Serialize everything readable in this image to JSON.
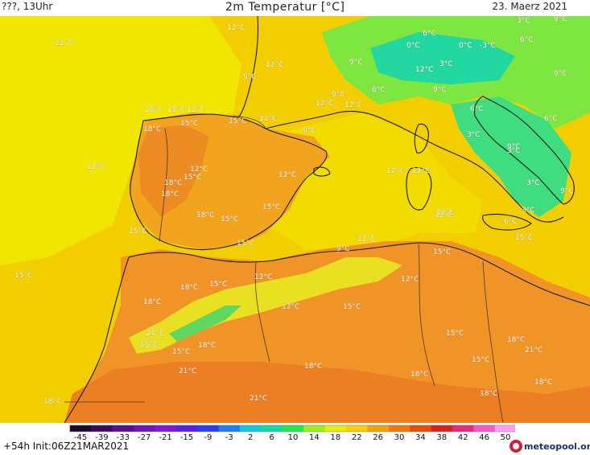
{
  "header": {
    "left": "???, 13Uhr",
    "title": "2m Temperatur [°C]",
    "date": "23. Maerz 2021"
  },
  "footer": {
    "run_info": "+54h  Init:06Z21MAR2021",
    "brand": "meteopool.org"
  },
  "legend": {
    "ticks": [
      "-45",
      "-39",
      "-33",
      "-27",
      "-21",
      "-15",
      "-9",
      "-3",
      "2",
      "6",
      "10",
      "14",
      "18",
      "22",
      "26",
      "30",
      "34",
      "38",
      "42",
      "46",
      "50"
    ],
    "colors": [
      "#1e0a2e",
      "#3a0a5e",
      "#55108a",
      "#6e14b4",
      "#8416d6",
      "#5a1ee6",
      "#2c3cf0",
      "#1e7ef4",
      "#12c8d8",
      "#12dca0",
      "#22e650",
      "#9ef018",
      "#e6f000",
      "#f8d000",
      "#f4a400",
      "#f07800",
      "#e84c00",
      "#dc1e1e",
      "#e8287a",
      "#f45ac8",
      "#ff9cf4"
    ]
  },
  "temperature_labels": [
    "12°C",
    "12°C",
    "9°C",
    "12°C",
    "0°C",
    "6°C",
    "-3°C",
    "0°C",
    "3°C",
    "6°C",
    "9°C",
    "12°C",
    "9°C",
    "18°C",
    "15°C",
    "12°C",
    "15°C",
    "12°C",
    "9°C",
    "12°C",
    "12°C",
    "12°C",
    "18°C",
    "12°C",
    "15°C",
    "12°C",
    "18°C",
    "18°C",
    "18°C",
    "15°C",
    "15°C",
    "15°C",
    "15°C",
    "12°C",
    "15°C",
    "9°C",
    "9°C",
    "12°C",
    "15°C",
    "18°C",
    "15°C",
    "12°C",
    "12°C",
    "15°C",
    "15°C",
    "21°C",
    "15°C",
    "15°C",
    "18°C",
    "18°C",
    "21°C",
    "21°C",
    "18°C",
    "18°C",
    "18°C",
    "18°C",
    "15°C",
    "12°C",
    "18°C",
    "6°C",
    "9°C",
    "3°C",
    "9°C",
    "6°C",
    "3°C",
    "3°C",
    "6°C",
    "3°C",
    "9°C",
    "12°C",
    "15°C",
    "9°C",
    "18°C",
    "21°C",
    "15°C",
    "12°C",
    "3°C",
    "6°C",
    "12°C"
  ]
}
